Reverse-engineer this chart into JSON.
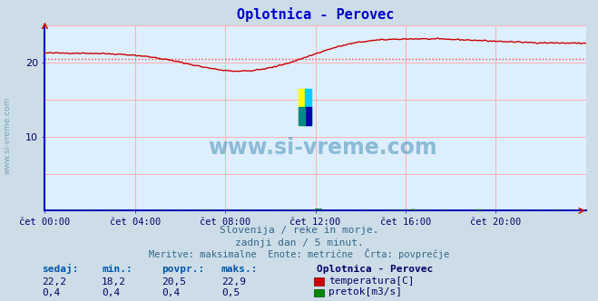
{
  "title": "Oplotnica - Perovec",
  "bg_color": "#ccdde8",
  "plot_bg_color": "#ddeeff",
  "title_color": "#0000cc",
  "grid_color": "#ffb0b0",
  "axis_color": "#0000cc",
  "tick_color": "#000066",
  "text_color": "#336688",
  "xlim": [
    0,
    288
  ],
  "ylim": [
    0,
    25
  ],
  "ytick_val": 20,
  "xtick_labels": [
    "čet 00:00",
    "čet 04:00",
    "čet 08:00",
    "čet 12:00",
    "čet 16:00",
    "čet 20:00"
  ],
  "xtick_positions": [
    0,
    48,
    96,
    144,
    192,
    240
  ],
  "avg_temp": 20.5,
  "avg_color": "#ff4444",
  "temp_color": "#cc0000",
  "flow_color": "#008800",
  "flow_color2": "#0000cc",
  "watermark_text": "www.si-vreme.com",
  "watermark_color": "#5599bb",
  "subtitle1": "Slovenija / reke in morje.",
  "subtitle2": "zadnji dan / 5 minut.",
  "subtitle3": "Meritve: maksimalne  Enote: metrične  Črta: povprečje",
  "legend_title": "Oplotnica - Perovec",
  "legend_items": [
    "temperatura[C]",
    "pretok[m3/s]"
  ],
  "legend_colors": [
    "#cc0000",
    "#008800"
  ],
  "stats_headers": [
    "sedaj:",
    "min.:",
    "povpr.:",
    "maks.:"
  ],
  "stats_temp": [
    "22,2",
    "18,2",
    "20,5",
    "22,9"
  ],
  "stats_flow": [
    "0,4",
    "0,4",
    "0,4",
    "0,5"
  ]
}
